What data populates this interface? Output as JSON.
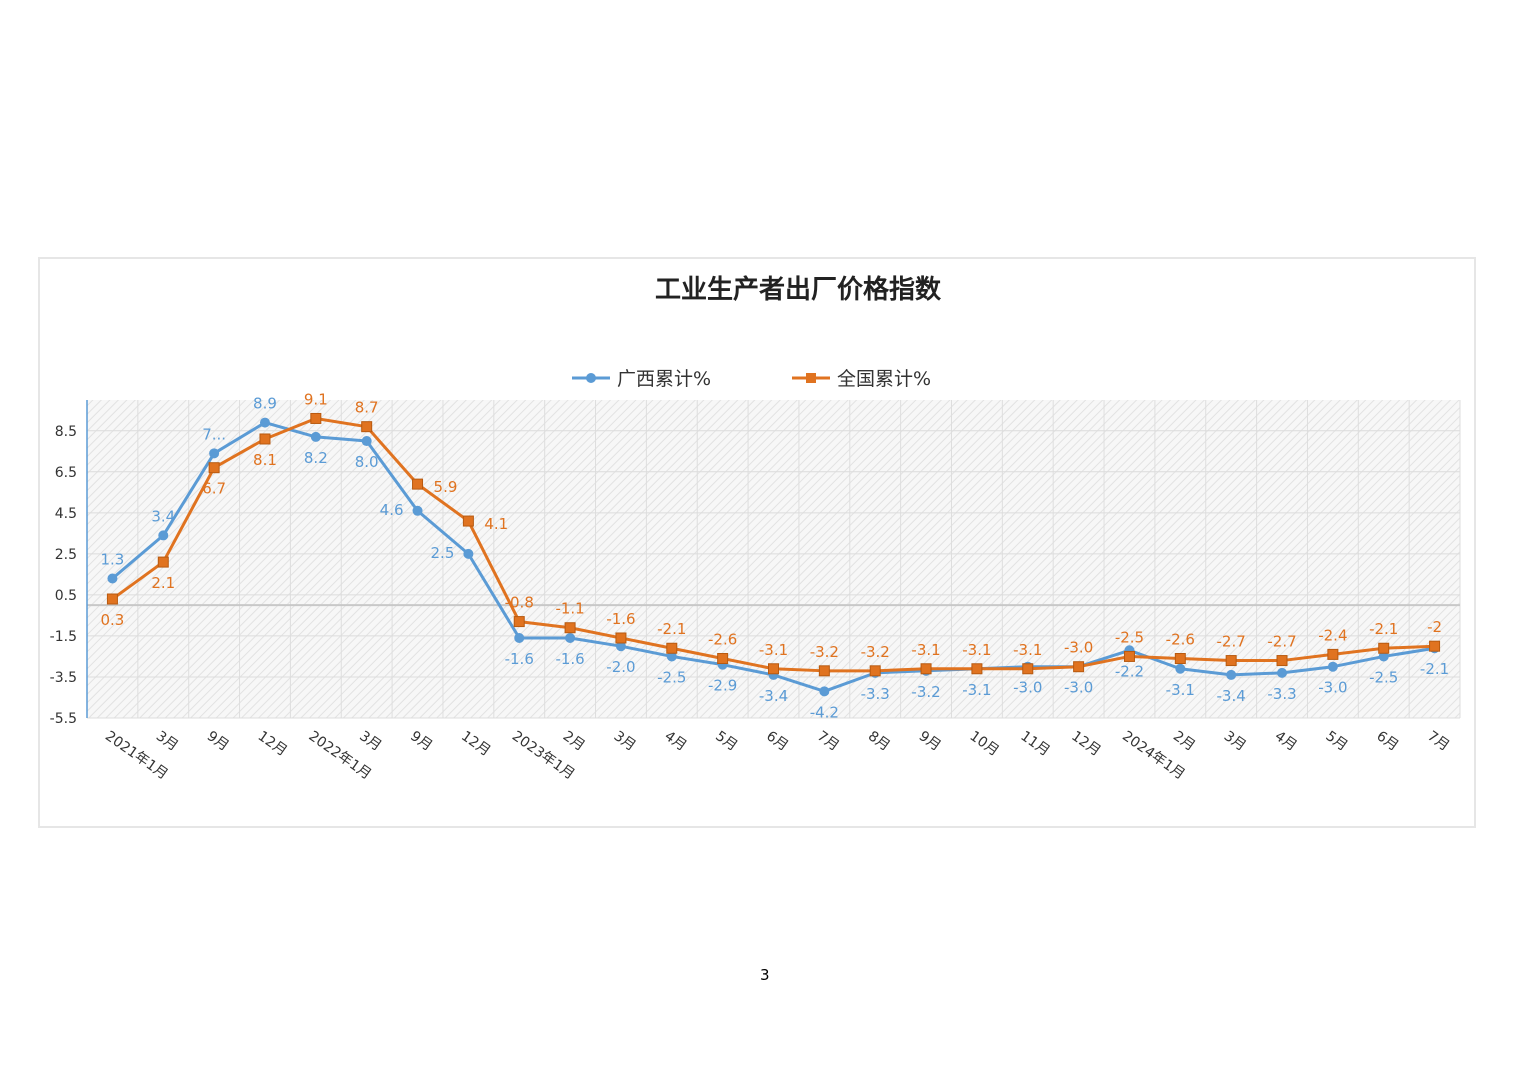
{
  "page_number": "3",
  "colors": {
    "guangxi": "#5b9bd5",
    "national": "#e07320",
    "axis": "#5b9bd5"
  },
  "chart_data": {
    "type": "line",
    "title": "工业生产者出厂价格指数",
    "xlabel": "",
    "ylabel": "",
    "ylim": [
      -5.5,
      10
    ],
    "yticks": [
      "-5.5",
      "-3.5",
      "-1.5",
      "0.5",
      "2.5",
      "4.5",
      "6.5",
      "8.5"
    ],
    "grid": true,
    "legend_position": "top-center",
    "categories": [
      "2021年1月",
      "3月",
      "9月",
      "12月",
      "2022年1月",
      "3月",
      "9月",
      "12月",
      "2023年1月",
      "2月",
      "3月",
      "4月",
      "5月",
      "6月",
      "7月",
      "8月",
      "9月",
      "10月",
      "11月",
      "12月",
      "2024年1月",
      "2月",
      "3月",
      "4月",
      "5月",
      "6月",
      "7月"
    ],
    "series": [
      {
        "name": "广西累计%",
        "marker": "circle",
        "values": [
          1.3,
          3.4,
          7.4,
          8.9,
          8.2,
          8.0,
          4.6,
          2.5,
          -1.6,
          -1.6,
          -2.0,
          -2.5,
          -2.9,
          -3.4,
          -4.2,
          -3.3,
          -3.2,
          -3.1,
          -3.0,
          -3.0,
          -2.2,
          -3.1,
          -3.4,
          -3.3,
          -3.0,
          -2.5,
          -2.1
        ],
        "labels": [
          "1.3",
          "3.4",
          "7...",
          "8.9",
          "8.2",
          "8.0",
          "4.6",
          "2.5",
          "-1.6",
          "-1.6",
          "-2.0",
          "-2.5",
          "-2.9",
          "-3.4",
          "-4.2",
          "-3.3",
          "-3.2",
          "-3.1",
          "-3.0",
          "-3.0",
          "-2.2",
          "-3.1",
          "-3.4",
          "-3.3",
          "-3.0",
          "-2.5",
          "-2.1"
        ]
      },
      {
        "name": "全国累计%",
        "marker": "square",
        "values": [
          0.3,
          2.1,
          6.7,
          8.1,
          9.1,
          8.7,
          5.9,
          4.1,
          -0.8,
          -1.1,
          -1.6,
          -2.1,
          -2.6,
          -3.1,
          -3.2,
          -3.2,
          -3.1,
          -3.1,
          -3.1,
          -3.0,
          -2.5,
          -2.6,
          -2.7,
          -2.7,
          -2.4,
          -2.1,
          -2
        ],
        "labels": [
          "0.3",
          "2.1",
          "6.7",
          "8.1",
          "9.1",
          "8.7",
          "5.9",
          "4.1",
          "-0.8",
          "-1.1",
          "-1.6",
          "-2.1",
          "-2.6",
          "-3.1",
          "-3.2",
          "-3.2",
          "-3.1",
          "-3.1",
          "-3.1",
          "-3.0",
          "-2.5",
          "-2.6",
          "-2.7",
          "-2.7",
          "-2.4",
          "-2.1",
          "-2"
        ]
      }
    ]
  }
}
